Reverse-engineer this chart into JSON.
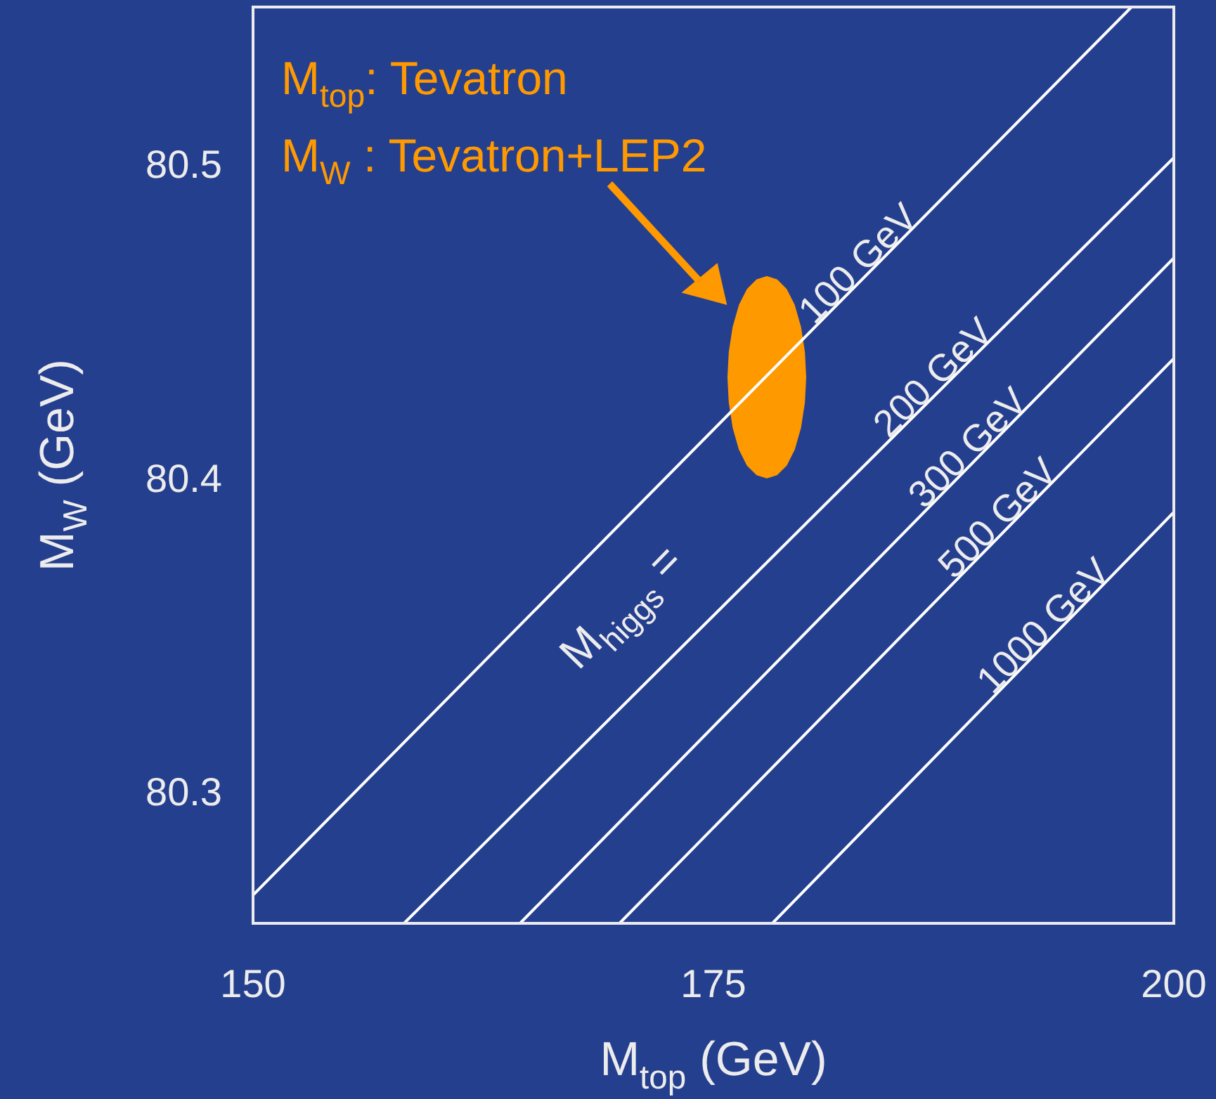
{
  "chart_data": {
    "type": "line",
    "xlabel": "M$_{top}$ (GeV)",
    "ylabel": "M$_{W}$ (GeV)",
    "xlim": [
      150,
      200
    ],
    "ylim": [
      80.259,
      80.551
    ],
    "xticks": [
      150,
      175,
      200
    ],
    "yticks": [
      80.3,
      80.4,
      80.5
    ],
    "annotations": [
      "M$_{top}$: Tevatron",
      "M$_{W}$ : Tevatron+LEP2",
      "M$_{higgs}$ ="
    ],
    "series": [
      {
        "name": "100 GeV",
        "color": "#ffffff",
        "x": [
          150,
          197.7
        ],
        "values": [
          80.268,
          80.551
        ]
      },
      {
        "name": "200 GeV",
        "color": "#ffffff",
        "x": [
          158.2,
          200
        ],
        "values": [
          80.259,
          80.503
        ]
      },
      {
        "name": "300 GeV",
        "color": "#ffffff",
        "x": [
          164.5,
          200
        ],
        "values": [
          80.259,
          80.471
        ]
      },
      {
        "name": "500 GeV",
        "color": "#ffffff",
        "x": [
          169.9,
          200
        ],
        "values": [
          80.259,
          80.439
        ]
      },
      {
        "name": "1000 GeV",
        "color": "#ffffff",
        "x": [
          178.2,
          200
        ],
        "values": [
          80.259,
          80.39
        ]
      },
      {
        "type": "area",
        "color": "#ff9900",
        "x": [
          180.0,
          179.93,
          179.72,
          179.38,
          178.95,
          178.44,
          177.9,
          177.36,
          176.85,
          176.42,
          176.08,
          175.87,
          175.8,
          175.87,
          176.08,
          176.42,
          176.85,
          177.36,
          177.9,
          178.44,
          178.95,
          179.38,
          179.72,
          179.93,
          180.0
        ],
        "values": [
          80.433,
          80.441,
          80.449,
          80.456,
          80.461,
          80.464,
          80.465,
          80.464,
          80.461,
          80.456,
          80.449,
          80.441,
          80.433,
          80.425,
          80.417,
          80.41,
          80.405,
          80.402,
          80.401,
          80.402,
          80.405,
          80.41,
          80.417,
          80.425,
          80.433
        ]
      }
    ]
  }
}
